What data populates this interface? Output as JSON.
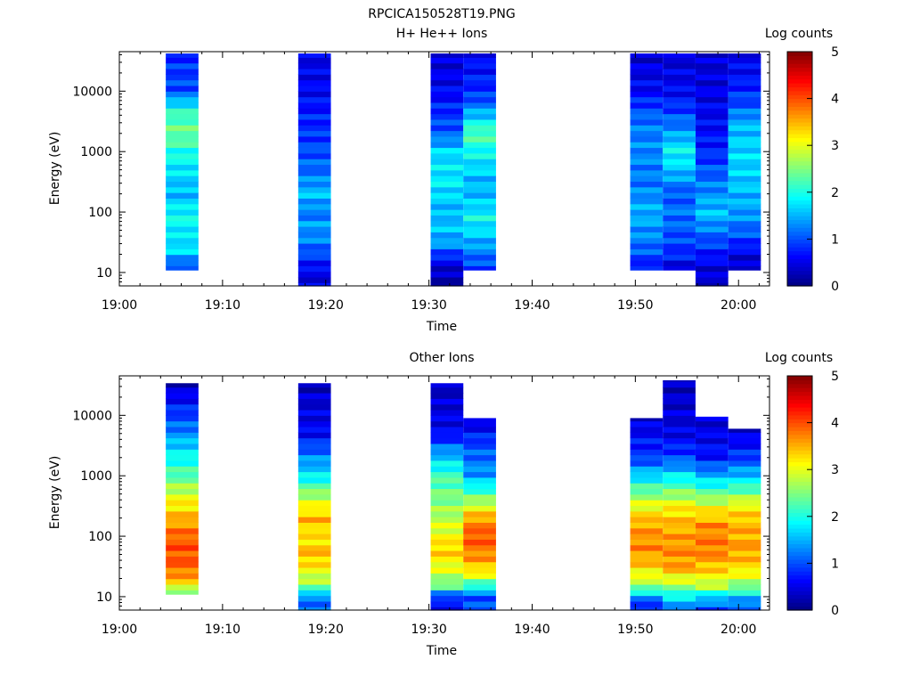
{
  "figure": {
    "title": "RPCICA150528T19.PNG",
    "colorbar_label": "Log counts",
    "colormap": [
      "#00007f",
      "#0000ff",
      "#0080ff",
      "#00ffff",
      "#80ff80",
      "#ffff00",
      "#ff8000",
      "#ff0000",
      "#7f0000"
    ]
  },
  "chart_data": [
    {
      "type": "heatmap",
      "title": "H+ He++ Ions",
      "xlabel": "Time",
      "ylabel": "Energy (eV)",
      "x_ticks": [
        "19:00",
        "19:10",
        "19:20",
        "19:30",
        "19:40",
        "19:50",
        "20:00"
      ],
      "xlim": [
        "19:00",
        "20:03"
      ],
      "y_scale": "log",
      "ylim": [
        6,
        45000
      ],
      "y_ticks": [
        10,
        100,
        1000,
        10000
      ],
      "y_tick_labels": [
        "10",
        "100",
        "1000",
        "10000"
      ],
      "colorbar": {
        "label": "Log counts",
        "range": [
          0,
          5
        ],
        "ticks": [
          "0",
          "1",
          "2",
          "3",
          "4",
          "5"
        ]
      },
      "cells": [
        {
          "t0": "19:04:30",
          "t1": "19:07:40",
          "emin": 11,
          "emax": 42000,
          "profile": [
            [
              11,
              0.8
            ],
            [
              15,
              1.2
            ],
            [
              25,
              1.8
            ],
            [
              40,
              1.7
            ],
            [
              60,
              1.9
            ],
            [
              100,
              1.9
            ],
            [
              200,
              1.5
            ],
            [
              400,
              1.7
            ],
            [
              1000,
              2.0
            ],
            [
              2000,
              2.4
            ],
            [
              4000,
              2.2
            ],
            [
              6000,
              1.8
            ],
            [
              10000,
              1.0
            ],
            [
              20000,
              0.9
            ],
            [
              42000,
              0.8
            ]
          ]
        },
        {
          "t0": "19:17:20",
          "t1": "19:20:30",
          "emin": 6,
          "emax": 42000,
          "profile": [
            [
              6,
              0.5
            ],
            [
              10,
              0.5
            ],
            [
              16,
              0.8
            ],
            [
              30,
              1.2
            ],
            [
              60,
              1.4
            ],
            [
              100,
              1.2
            ],
            [
              200,
              1.6
            ],
            [
              400,
              1.2
            ],
            [
              1000,
              1.0
            ],
            [
              3000,
              0.8
            ],
            [
              10000,
              0.6
            ],
            [
              42000,
              0.5
            ]
          ]
        },
        {
          "t0": "19:30:10",
          "t1": "19:33:20",
          "emin": 6,
          "emax": 42000,
          "profile": [
            [
              6,
              0.2
            ],
            [
              10,
              0.3
            ],
            [
              16,
              0.6
            ],
            [
              30,
              1.4
            ],
            [
              60,
              1.6
            ],
            [
              100,
              1.5
            ],
            [
              300,
              1.8
            ],
            [
              1000,
              1.7
            ],
            [
              2000,
              1.1
            ],
            [
              5000,
              0.8
            ],
            [
              10000,
              0.6
            ],
            [
              42000,
              0.4
            ]
          ]
        },
        {
          "t0": "19:33:20",
          "t1": "19:36:30",
          "emin": 11,
          "emax": 42000,
          "profile": [
            [
              11,
              0.8
            ],
            [
              20,
              1.2
            ],
            [
              40,
              1.6
            ],
            [
              80,
              1.9
            ],
            [
              150,
              1.6
            ],
            [
              300,
              1.5
            ],
            [
              1000,
              1.9
            ],
            [
              2000,
              2.3
            ],
            [
              4000,
              1.6
            ],
            [
              8000,
              0.9
            ],
            [
              20000,
              0.7
            ],
            [
              42000,
              0.6
            ]
          ]
        },
        {
          "t0": "19:49:30",
          "t1": "19:52:40",
          "emin": 11,
          "emax": 42000,
          "profile": [
            [
              11,
              0.6
            ],
            [
              20,
              1.0
            ],
            [
              40,
              1.3
            ],
            [
              100,
              1.5
            ],
            [
              300,
              1.2
            ],
            [
              1000,
              1.3
            ],
            [
              3000,
              1.2
            ],
            [
              6000,
              0.9
            ],
            [
              10000,
              0.6
            ],
            [
              42000,
              0.4
            ]
          ]
        },
        {
          "t0": "19:52:40",
          "t1": "19:55:50",
          "emin": 11,
          "emax": 42000,
          "profile": [
            [
              11,
              0.4
            ],
            [
              20,
              0.8
            ],
            [
              40,
              1.0
            ],
            [
              100,
              1.2
            ],
            [
              200,
              1.0
            ],
            [
              500,
              1.6
            ],
            [
              1000,
              1.9
            ],
            [
              2000,
              1.4
            ],
            [
              5000,
              0.9
            ],
            [
              10000,
              0.6
            ],
            [
              42000,
              0.4
            ]
          ]
        },
        {
          "t0": "19:55:50",
          "t1": "19:59:00",
          "emin": 6,
          "emax": 42000,
          "profile": [
            [
              6,
              0.4
            ],
            [
              10,
              0.4
            ],
            [
              20,
              0.7
            ],
            [
              50,
              1.2
            ],
            [
              100,
              1.6
            ],
            [
              300,
              1.2
            ],
            [
              1000,
              0.8
            ],
            [
              3000,
              0.6
            ],
            [
              10000,
              0.5
            ],
            [
              42000,
              0.4
            ]
          ]
        },
        {
          "t0": "19:59:00",
          "t1": "20:02:10",
          "emin": 11,
          "emax": 42000,
          "profile": [
            [
              11,
              0.3
            ],
            [
              20,
              0.5
            ],
            [
              40,
              1.0
            ],
            [
              100,
              1.4
            ],
            [
              300,
              1.6
            ],
            [
              1000,
              1.7
            ],
            [
              3000,
              1.5
            ],
            [
              6000,
              1.0
            ],
            [
              15000,
              0.7
            ],
            [
              42000,
              0.5
            ]
          ]
        }
      ]
    },
    {
      "type": "heatmap",
      "title": "Other Ions",
      "xlabel": "Time",
      "ylabel": "Energy (eV)",
      "x_ticks": [
        "19:00",
        "19:10",
        "19:20",
        "19:30",
        "19:40",
        "19:50",
        "20:00"
      ],
      "xlim": [
        "19:00",
        "20:03"
      ],
      "y_scale": "log",
      "ylim": [
        6,
        45000
      ],
      "y_ticks": [
        10,
        100,
        1000,
        10000
      ],
      "y_tick_labels": [
        "10",
        "100",
        "1000",
        "10000"
      ],
      "colorbar": {
        "label": "Log counts",
        "range": [
          0,
          5
        ],
        "ticks": [
          "0",
          "1",
          "2",
          "3",
          "4",
          "5"
        ]
      },
      "cells": [
        {
          "t0": "19:04:30",
          "t1": "19:07:40",
          "emin": 11,
          "emax": 34000,
          "profile": [
            [
              11,
              2.0
            ],
            [
              14,
              2.9
            ],
            [
              18,
              3.4
            ],
            [
              30,
              3.9
            ],
            [
              60,
              4.0
            ],
            [
              100,
              3.9
            ],
            [
              200,
              3.5
            ],
            [
              400,
              3.1
            ],
            [
              1000,
              2.3
            ],
            [
              3000,
              1.7
            ],
            [
              6000,
              1.2
            ],
            [
              34000,
              0.3
            ]
          ]
        },
        {
          "t0": "19:17:20",
          "t1": "19:20:30",
          "emin": 6,
          "emax": 34000,
          "profile": [
            [
              6,
              1.2
            ],
            [
              10,
              1.2
            ],
            [
              15,
              2.5
            ],
            [
              25,
              3.0
            ],
            [
              50,
              3.5
            ],
            [
              100,
              3.2
            ],
            [
              200,
              3.5
            ],
            [
              400,
              2.9
            ],
            [
              1000,
              1.8
            ],
            [
              2000,
              1.3
            ],
            [
              5000,
              0.6
            ],
            [
              34000,
              0.3
            ]
          ]
        },
        {
          "t0": "19:30:10",
          "t1": "19:33:20",
          "emin": 6,
          "emax": 34000,
          "profile": [
            [
              6,
              0.6
            ],
            [
              10,
              0.8
            ],
            [
              15,
              2.4
            ],
            [
              30,
              3.0
            ],
            [
              60,
              3.4
            ],
            [
              100,
              3.1
            ],
            [
              300,
              2.6
            ],
            [
              1000,
              2.2
            ],
            [
              2500,
              1.4
            ],
            [
              5000,
              0.6
            ],
            [
              34000,
              0.3
            ]
          ]
        },
        {
          "t0": "19:33:20",
          "t1": "19:36:30",
          "emin": 6,
          "emax": 9000,
          "profile": [
            [
              6,
              1.0
            ],
            [
              10,
              1.0
            ],
            [
              15,
              2.0
            ],
            [
              25,
              3.2
            ],
            [
              50,
              3.7
            ],
            [
              100,
              4.0
            ],
            [
              200,
              3.6
            ],
            [
              400,
              2.6
            ],
            [
              1000,
              1.4
            ],
            [
              3000,
              1.0
            ],
            [
              9000,
              0.4
            ]
          ]
        },
        {
          "t0": "19:49:30",
          "t1": "19:52:40",
          "emin": 6,
          "emax": 9000,
          "profile": [
            [
              6,
              0.6
            ],
            [
              10,
              1.3
            ],
            [
              15,
              2.6
            ],
            [
              30,
              3.3
            ],
            [
              60,
              3.7
            ],
            [
              150,
              3.6
            ],
            [
              300,
              3.1
            ],
            [
              1000,
              1.7
            ],
            [
              2000,
              0.9
            ],
            [
              9000,
              0.4
            ]
          ]
        },
        {
          "t0": "19:52:40",
          "t1": "19:55:50",
          "emin": 6,
          "emax": 38000,
          "profile": [
            [
              6,
              1.2
            ],
            [
              10,
              1.8
            ],
            [
              15,
              2.6
            ],
            [
              30,
              3.6
            ],
            [
              60,
              3.7
            ],
            [
              150,
              3.5
            ],
            [
              300,
              3.2
            ],
            [
              1000,
              1.8
            ],
            [
              2000,
              1.0
            ],
            [
              5000,
              0.5
            ],
            [
              38000,
              0.3
            ]
          ]
        },
        {
          "t0": "19:55:50",
          "t1": "19:59:00",
          "emin": 6,
          "emax": 9500,
          "profile": [
            [
              6,
              0.9
            ],
            [
              10,
              1.6
            ],
            [
              15,
              2.8
            ],
            [
              30,
              3.4
            ],
            [
              60,
              3.8
            ],
            [
              150,
              3.7
            ],
            [
              300,
              3.1
            ],
            [
              1000,
              1.5
            ],
            [
              2000,
              0.7
            ],
            [
              9500,
              0.4
            ]
          ]
        },
        {
          "t0": "19:59:00",
          "t1": "20:02:10",
          "emin": 6,
          "emax": 6000,
          "profile": [
            [
              6,
              0.9
            ],
            [
              10,
              1.6
            ],
            [
              15,
              2.5
            ],
            [
              30,
              3.3
            ],
            [
              60,
              3.6
            ],
            [
              150,
              3.5
            ],
            [
              300,
              3.2
            ],
            [
              1000,
              1.6
            ],
            [
              2000,
              0.9
            ],
            [
              6000,
              0.4
            ]
          ]
        }
      ]
    }
  ]
}
